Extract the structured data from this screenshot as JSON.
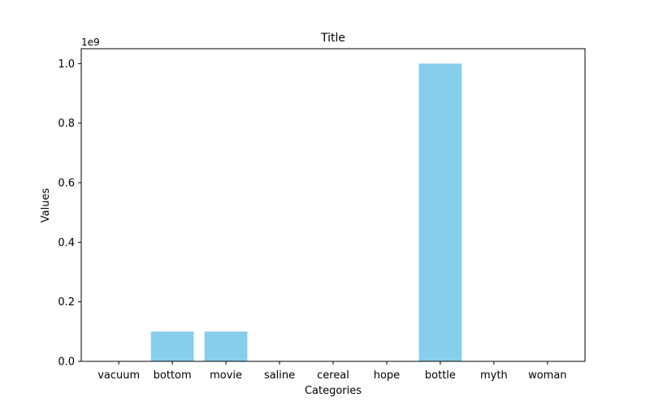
{
  "chart_data": {
    "type": "bar",
    "title": "Title",
    "xlabel": "Categories",
    "ylabel": "Values",
    "offset_label": "1e9",
    "categories": [
      "vacuum",
      "bottom",
      "movie",
      "saline",
      "cereal",
      "hope",
      "bottle",
      "myth",
      "woman"
    ],
    "values": [
      0,
      100000000,
      100000000,
      0,
      0,
      0,
      1000000000,
      0,
      0
    ],
    "ylim": [
      0,
      1050000000
    ],
    "y_ticks": [
      0,
      200000000,
      400000000,
      600000000,
      800000000,
      1000000000
    ],
    "y_tick_labels": [
      "0.0",
      "0.2",
      "0.4",
      "0.6",
      "0.8",
      "1.0"
    ],
    "bar_color": "#87ceeb",
    "grid": false,
    "legend": false
  }
}
